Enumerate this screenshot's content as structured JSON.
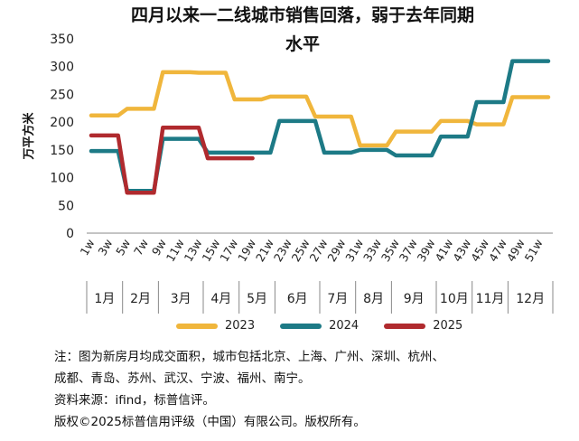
{
  "chart_data": {
    "type": "line",
    "title_line1": "四月以来一二线城市销售回落，弱于去年同期",
    "title_line2": "水平",
    "ylabel": "万平方米",
    "ylim": [
      0,
      350
    ],
    "yticks": [
      0,
      50,
      100,
      150,
      200,
      250,
      300,
      350
    ],
    "x": [
      "1w",
      "2w",
      "3w",
      "4w",
      "5w",
      "6w",
      "7w",
      "8w",
      "9w",
      "10w",
      "11w",
      "12w",
      "13w",
      "14w",
      "15w",
      "16w",
      "17w",
      "18w",
      "19w",
      "20w",
      "21w",
      "22w",
      "23w",
      "24w",
      "25w",
      "26w",
      "27w",
      "28w",
      "29w",
      "30w",
      "31w",
      "32w",
      "33w",
      "34w",
      "35w",
      "36w",
      "37w",
      "38w",
      "39w",
      "40w",
      "41w",
      "42w",
      "43w",
      "44w",
      "45w",
      "46w",
      "47w",
      "48w",
      "49w",
      "50w",
      "51w",
      "52w"
    ],
    "xtick_labels": [
      "1w",
      "3w",
      "5w",
      "7w",
      "9w",
      "11w",
      "13w",
      "15w",
      "17w",
      "19w",
      "21w",
      "23w",
      "25w",
      "27w",
      "29w",
      "31w",
      "33w",
      "35w",
      "37w",
      "39w",
      "41w",
      "43w",
      "45w",
      "47w",
      "49w",
      "51w"
    ],
    "months": [
      {
        "label": "1月",
        "start": 1,
        "end": 4
      },
      {
        "label": "2月",
        "start": 5,
        "end": 8
      },
      {
        "label": "3月",
        "start": 9,
        "end": 13
      },
      {
        "label": "4月",
        "start": 14,
        "end": 17
      },
      {
        "label": "5月",
        "start": 18,
        "end": 21
      },
      {
        "label": "6月",
        "start": 22,
        "end": 26
      },
      {
        "label": "7月",
        "start": 27,
        "end": 30
      },
      {
        "label": "8月",
        "start": 31,
        "end": 34
      },
      {
        "label": "9月",
        "start": 35,
        "end": 39
      },
      {
        "label": "10月",
        "start": 40,
        "end": 43
      },
      {
        "label": "11月",
        "start": 44,
        "end": 47
      },
      {
        "label": "12月",
        "start": 48,
        "end": 52
      }
    ],
    "series": [
      {
        "name": "2023",
        "color": "#f0b63c",
        "values": [
          212,
          212,
          212,
          212,
          224,
          224,
          224,
          224,
          290,
          290,
          290,
          290,
          289,
          289,
          289,
          289,
          241,
          241,
          241,
          241,
          246,
          246,
          246,
          246,
          246,
          210,
          210,
          210,
          210,
          210,
          158,
          158,
          158,
          158,
          183,
          183,
          183,
          183,
          183,
          202,
          202,
          202,
          202,
          196,
          196,
          196,
          196,
          245,
          245,
          245,
          245,
          245
        ]
      },
      {
        "name": "2024",
        "color": "#1d7a86",
        "values": [
          148,
          148,
          148,
          148,
          76,
          76,
          76,
          76,
          170,
          170,
          170,
          170,
          170,
          145,
          145,
          145,
          145,
          145,
          145,
          145,
          145,
          202,
          202,
          202,
          202,
          202,
          145,
          145,
          145,
          145,
          150,
          150,
          150,
          150,
          140,
          140,
          140,
          140,
          140,
          174,
          174,
          174,
          174,
          236,
          236,
          236,
          236,
          310,
          310,
          310,
          310,
          310
        ]
      },
      {
        "name": "2025",
        "color": "#b02a2e",
        "values": [
          176,
          176,
          176,
          176,
          73,
          73,
          73,
          73,
          190,
          190,
          190,
          190,
          190,
          135,
          135,
          135,
          135,
          135,
          135,
          null,
          null,
          null,
          null,
          null,
          null,
          null,
          null,
          null,
          null,
          null,
          null,
          null,
          null,
          null,
          null,
          null,
          null,
          null,
          null,
          null,
          null,
          null,
          null,
          null,
          null,
          null,
          null,
          null,
          null,
          null,
          null,
          null
        ]
      }
    ]
  },
  "notes": {
    "line1": "注：图为新房月均成交面积，城市包括北京、上海、广州、深圳、杭州、",
    "line2": "成都、青岛、苏州、武汉、宁波、福州、南宁。",
    "line3": "资料来源：ifind，标普信评。",
    "line4": "版权©2025标普信用评级（中国）有限公司。版权所有。"
  }
}
